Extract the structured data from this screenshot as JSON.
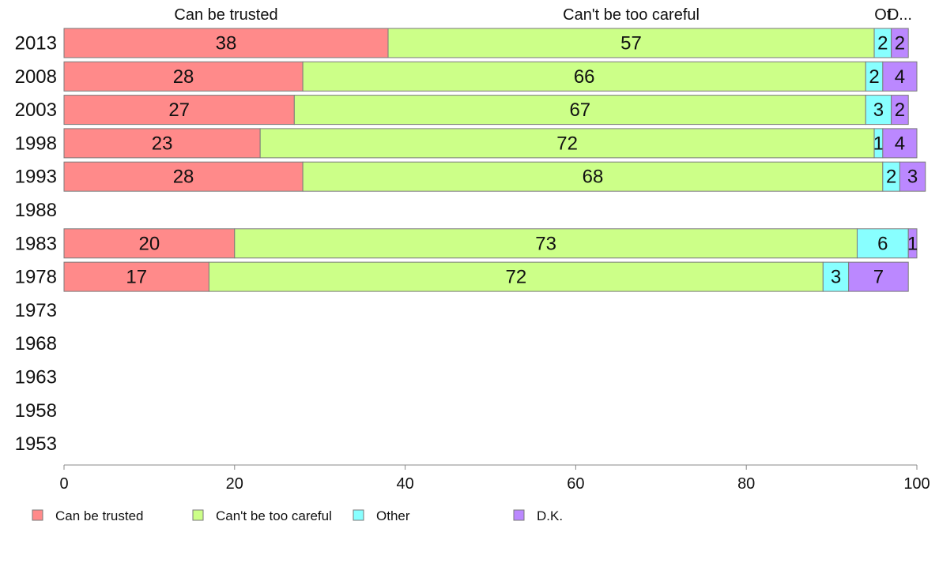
{
  "chart_data": {
    "type": "bar",
    "orientation": "horizontal",
    "stacked": true,
    "categories": [
      "2013",
      "2008",
      "2003",
      "1998",
      "1993",
      "1988",
      "1983",
      "1978",
      "1973",
      "1968",
      "1963",
      "1958",
      "1953"
    ],
    "series": [
      {
        "name": "Can be trusted",
        "color": "#ff8a8a",
        "values": [
          38,
          28,
          27,
          23,
          28,
          null,
          20,
          17,
          null,
          null,
          null,
          null,
          null
        ]
      },
      {
        "name": "Can't be too careful",
        "color": "#ccff88",
        "values": [
          57,
          66,
          67,
          72,
          68,
          null,
          73,
          72,
          null,
          null,
          null,
          null,
          null
        ]
      },
      {
        "name": "Other",
        "color": "#88ffff",
        "values": [
          2,
          2,
          3,
          1,
          2,
          null,
          6,
          3,
          null,
          null,
          null,
          null,
          null
        ]
      },
      {
        "name": "D.K.",
        "color": "#bb88ff",
        "values": [
          2,
          4,
          2,
          4,
          3,
          null,
          1,
          7,
          null,
          null,
          null,
          null,
          null
        ]
      }
    ],
    "top_labels": [
      "Can be trusted",
      "Can't be too careful",
      "Ot",
      "D..."
    ],
    "xlim": [
      0,
      100
    ],
    "xticks": [
      0,
      20,
      40,
      60,
      80,
      100
    ],
    "legend_position": "bottom-left",
    "grid": false
  }
}
